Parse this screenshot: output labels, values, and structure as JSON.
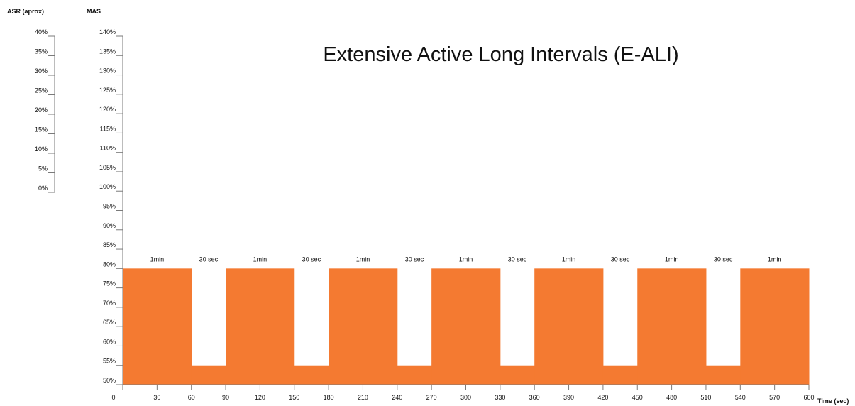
{
  "chart_data": {
    "type": "area",
    "title": "Extensive Active Long Intervals (E-ALI)",
    "xlabel": "Time (sec)",
    "ylabel": "MAS",
    "ylabel_secondary": "ASR (aprox)",
    "xlim": [
      0,
      600
    ],
    "ylim": [
      50,
      140
    ],
    "secondary_ylim": [
      0,
      40
    ],
    "x_ticks": [
      "0",
      "30",
      "60",
      "90",
      "120",
      "150",
      "180",
      "210",
      "240",
      "270",
      "300",
      "330",
      "360",
      "390",
      "420",
      "450",
      "480",
      "510",
      "540",
      "570",
      "600"
    ],
    "y_ticks": [
      "50%",
      "55%",
      "60%",
      "65%",
      "70%",
      "75%",
      "80%",
      "85%",
      "90%",
      "95%",
      "100%",
      "105%",
      "110%",
      "115%",
      "120%",
      "125%",
      "130%",
      "135%",
      "140%"
    ],
    "secondary_y_ticks": [
      "0%",
      "5%",
      "10%",
      "15%",
      "20%",
      "25%",
      "30%",
      "35%",
      "40%"
    ],
    "fill_color": "#f47a31",
    "segments": [
      {
        "x_start": 0,
        "x_end": 60,
        "y": 80,
        "label": "1min"
      },
      {
        "x_start": 60,
        "x_end": 90,
        "y": 55,
        "label": "30 sec"
      },
      {
        "x_start": 90,
        "x_end": 150,
        "y": 80,
        "label": "1min"
      },
      {
        "x_start": 150,
        "x_end": 180,
        "y": 55,
        "label": "30 sec"
      },
      {
        "x_start": 180,
        "x_end": 240,
        "y": 80,
        "label": "1min"
      },
      {
        "x_start": 240,
        "x_end": 270,
        "y": 55,
        "label": "30 sec"
      },
      {
        "x_start": 270,
        "x_end": 330,
        "y": 80,
        "label": "1min"
      },
      {
        "x_start": 330,
        "x_end": 360,
        "y": 55,
        "label": "30 sec"
      },
      {
        "x_start": 360,
        "x_end": 420,
        "y": 80,
        "label": "1min"
      },
      {
        "x_start": 420,
        "x_end": 450,
        "y": 55,
        "label": "30 sec"
      },
      {
        "x_start": 450,
        "x_end": 510,
        "y": 80,
        "label": "1min"
      },
      {
        "x_start": 510,
        "x_end": 540,
        "y": 55,
        "label": "30 sec"
      },
      {
        "x_start": 540,
        "x_end": 600,
        "y": 80,
        "label": "1min"
      }
    ]
  }
}
